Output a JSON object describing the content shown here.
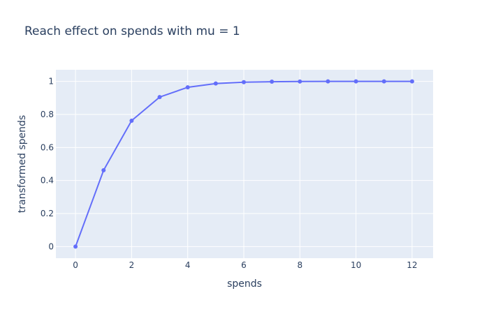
{
  "chart_data": {
    "type": "line",
    "title": "Reach effect on spends with mu = 1",
    "xlabel": "spends",
    "ylabel": "transformed spends",
    "x": [
      0,
      1,
      2,
      3,
      4,
      5,
      6,
      7,
      8,
      9,
      10,
      11,
      12
    ],
    "y": [
      0,
      0.462,
      0.762,
      0.905,
      0.964,
      0.987,
      0.995,
      0.998,
      0.999,
      1.0,
      1.0,
      1.0,
      1.0
    ],
    "xlim": [
      -0.7,
      12.75
    ],
    "ylim": [
      -0.07,
      1.07
    ],
    "xticks": [
      "0",
      "2",
      "4",
      "6",
      "8",
      "10",
      "12"
    ],
    "yticks": [
      "0",
      "0.2",
      "0.4",
      "0.6",
      "0.8",
      "1"
    ],
    "grid": true,
    "mode": "lines+markers",
    "colors": {
      "line": "#636efa",
      "plot_bg": "#e5ecf6",
      "grid": "#ffffff"
    }
  }
}
